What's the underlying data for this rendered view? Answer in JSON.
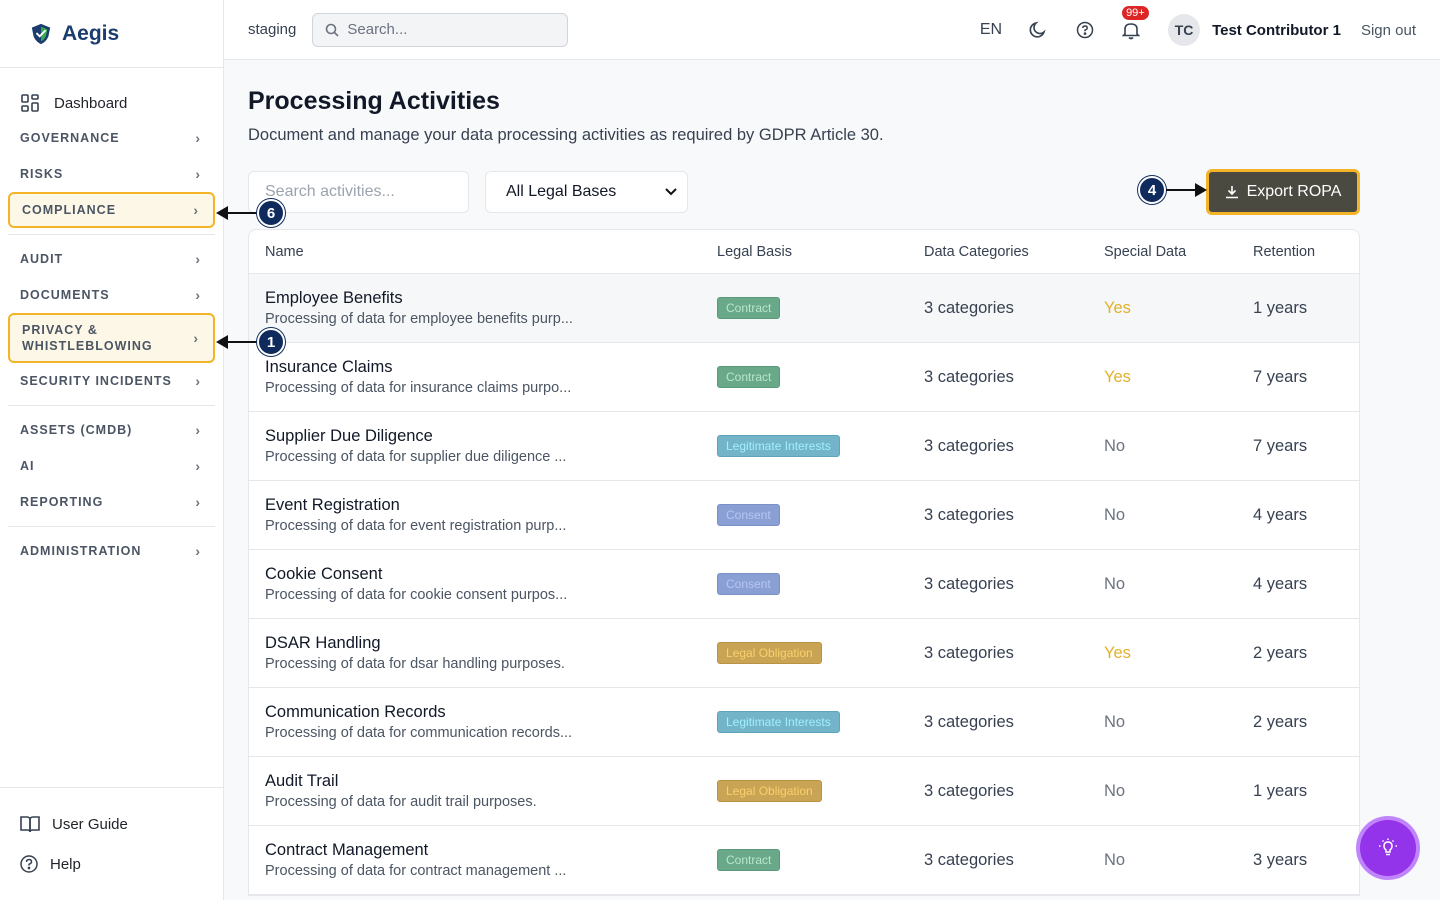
{
  "app": {
    "name": "Aegis",
    "environment": "staging",
    "brand_color": "#1a3c6e"
  },
  "search": {
    "placeholder": "Search..."
  },
  "topbar": {
    "language": "EN",
    "notifications_badge": "99+",
    "avatar_initials": "TC",
    "user_name": "Test Contributor 1",
    "sign_out": "Sign out"
  },
  "sidebar": {
    "dashboard": "Dashboard",
    "items": [
      {
        "label": "GOVERNANCE"
      },
      {
        "label": "RISKS"
      },
      {
        "label": "COMPLIANCE"
      },
      {
        "label": "AUDIT"
      },
      {
        "label": "DOCUMENTS"
      },
      {
        "label": "PRIVACY &",
        "label2": "WHISTLEBLOWING"
      },
      {
        "label": "SECURITY INCIDENTS"
      },
      {
        "label": "ASSETS (CMDB)"
      },
      {
        "label": "AI"
      },
      {
        "label": "REPORTING"
      },
      {
        "label": "ADMINISTRATION"
      }
    ],
    "user_guide": "User Guide",
    "help": "Help"
  },
  "page": {
    "title": "Processing Activities",
    "subtitle": "Document and manage your data processing activities as required by GDPR Article 30.",
    "activity_search_placeholder": "Search activities...",
    "legal_filter_value": "All Legal Bases",
    "export_label": "Export ROPA"
  },
  "table": {
    "headers": [
      "Name",
      "Legal Basis",
      "Data Categories",
      "Special Data",
      "Retention"
    ],
    "rows": [
      {
        "name": "Employee Benefits",
        "desc": "Processing of data for employee benefits purp...",
        "legal": "Contract",
        "categories": "3 categories",
        "special": "Yes",
        "retention": "1 years"
      },
      {
        "name": "Insurance Claims",
        "desc": "Processing of data for insurance claims purpo...",
        "legal": "Contract",
        "categories": "3 categories",
        "special": "Yes",
        "retention": "7 years"
      },
      {
        "name": "Supplier Due Diligence",
        "desc": "Processing of data for supplier due diligence ...",
        "legal": "Legitimate Interests",
        "categories": "3 categories",
        "special": "No",
        "retention": "7 years"
      },
      {
        "name": "Event Registration",
        "desc": "Processing of data for event registration purp...",
        "legal": "Consent",
        "categories": "3 categories",
        "special": "No",
        "retention": "4 years"
      },
      {
        "name": "Cookie Consent",
        "desc": "Processing of data for cookie consent purpos...",
        "legal": "Consent",
        "categories": "3 categories",
        "special": "No",
        "retention": "4 years"
      },
      {
        "name": "DSAR Handling",
        "desc": "Processing of data for dsar handling purposes.",
        "legal": "Legal Obligation",
        "categories": "3 categories",
        "special": "Yes",
        "retention": "2 years"
      },
      {
        "name": "Communication Records",
        "desc": "Processing of data for communication records...",
        "legal": "Legitimate Interests",
        "categories": "3 categories",
        "special": "No",
        "retention": "2 years"
      },
      {
        "name": "Audit Trail",
        "desc": "Processing of data for audit trail purposes.",
        "legal": "Legal Obligation",
        "categories": "3 categories",
        "special": "No",
        "retention": "1 years"
      },
      {
        "name": "Contract Management",
        "desc": "Processing of data for contract management ...",
        "legal": "Contract",
        "categories": "3 categories",
        "special": "No",
        "retention": "3 years"
      }
    ]
  },
  "annotations": {
    "callout_privacy": "1",
    "callout_export": "4",
    "callout_compliance": "6"
  },
  "colors": {
    "highlight": "#f4b42a",
    "callout": "#0f2a5c",
    "special_yes": "#e2b02b"
  }
}
